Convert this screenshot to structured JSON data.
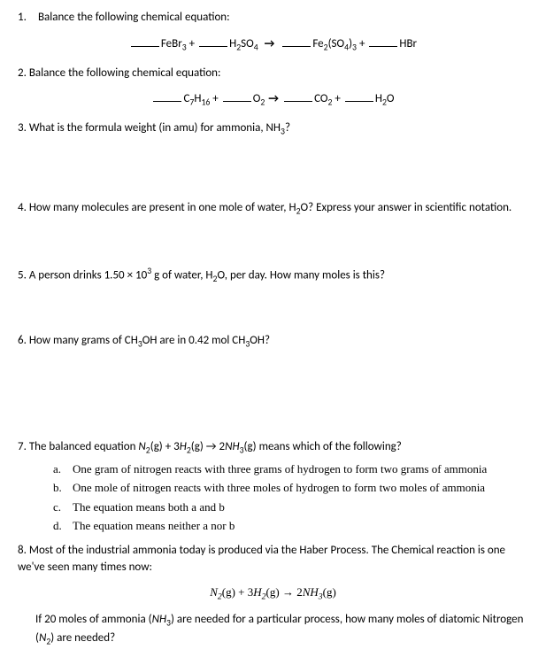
{
  "q1": {
    "num": "1.",
    "text": "Balance the following chemical equation:",
    "r1": "FeBr",
    "r1sub": "3",
    "plus1": "+",
    "r2": "H",
    "r2sub": "2",
    "r2b": "SO",
    "r2bsub": "4",
    "p1": "Fe",
    "p1sub": "2",
    "p1b": "(SO",
    "p1bsub": "4",
    "p1c": ")",
    "p1csub": "3",
    "plus2": "+",
    "p2": "HBr"
  },
  "q2": {
    "num": "2.",
    "text": "Balance the following chemical equation:",
    "r1": "C",
    "r1sub": "7",
    "r1b": "H",
    "r1bsub": "16",
    "plus1": "+",
    "r2": "O",
    "r2sub": "2",
    "p1": "CO",
    "p1sub": "2",
    "plus2": "+",
    "p2": "H",
    "p2sub": "2",
    "p2b": "O"
  },
  "q3": {
    "num": "3.",
    "text_a": "What is the formula weight (in amu) for ammonia, NH",
    "sub": "3",
    "text_b": "?"
  },
  "q4": {
    "num": "4.",
    "text_a": "How many molecules are present in one mole of water, H",
    "sub": "2",
    "text_b": "O?  Express your answer in scientific notation."
  },
  "q5": {
    "num": "5.",
    "text_a": "A person drinks 1.50 × 10",
    "sup": "3",
    "text_b": " g of water, H",
    "sub": "2",
    "text_c": "O, per day. How many moles is this?"
  },
  "q6": {
    "num": "6.",
    "text_a": "How many grams of CH",
    "sub1": "3",
    "text_b": "OH are in 0.42 mol CH",
    "sub2": "3",
    "text_c": "OH?"
  },
  "q7": {
    "num": "7.",
    "text_a": "The balanced equation ",
    "eq_n": "N",
    "eq_nsub": "2",
    "eq_g1": "(g)",
    "eq_plus": " + 3",
    "eq_h": "H",
    "eq_hsub": "2",
    "eq_g2": "(g)",
    "eq_arr": " → 2",
    "eq_nh": "NH",
    "eq_nhsub": "3",
    "eq_g3": "(g)",
    "text_b": " means which of the following?",
    "opt_a_letter": "a.",
    "opt_a": "One gram of nitrogen reacts with three grams of hydrogen to form two grams of ammonia",
    "opt_b_letter": "b.",
    "opt_b": "One mole of nitrogen reacts with three moles of hydrogen to form two moles of ammonia",
    "opt_c_letter": "c.",
    "opt_c": "The equation means both a and b",
    "opt_d_letter": "d.",
    "opt_d": "The equation means neither a nor b"
  },
  "q8": {
    "num": "8.",
    "text": "Most of the industrial ammonia today is produced via the Haber Process.  The Chemical reaction is one we've seen many times now:",
    "eq_n": "N",
    "eq_nsub": "2",
    "eq_g1": "(g)",
    "eq_plus": " + 3",
    "eq_h": "H",
    "eq_hsub": "2",
    "eq_g2": "(g)",
    "eq_arr": " → 2",
    "eq_nh": "NH",
    "eq_nhsub": "3",
    "eq_g3": "(g)",
    "text2_a": "If 20 moles of ammonia (",
    "text2_nh": "NH",
    "text2_nhsub": "3",
    "text2_b": ") are needed for a particular process, how many moles of diatomic Nitrogen (",
    "text2_n": "N",
    "text2_nsub": "2",
    "text2_c": ") are needed?"
  }
}
